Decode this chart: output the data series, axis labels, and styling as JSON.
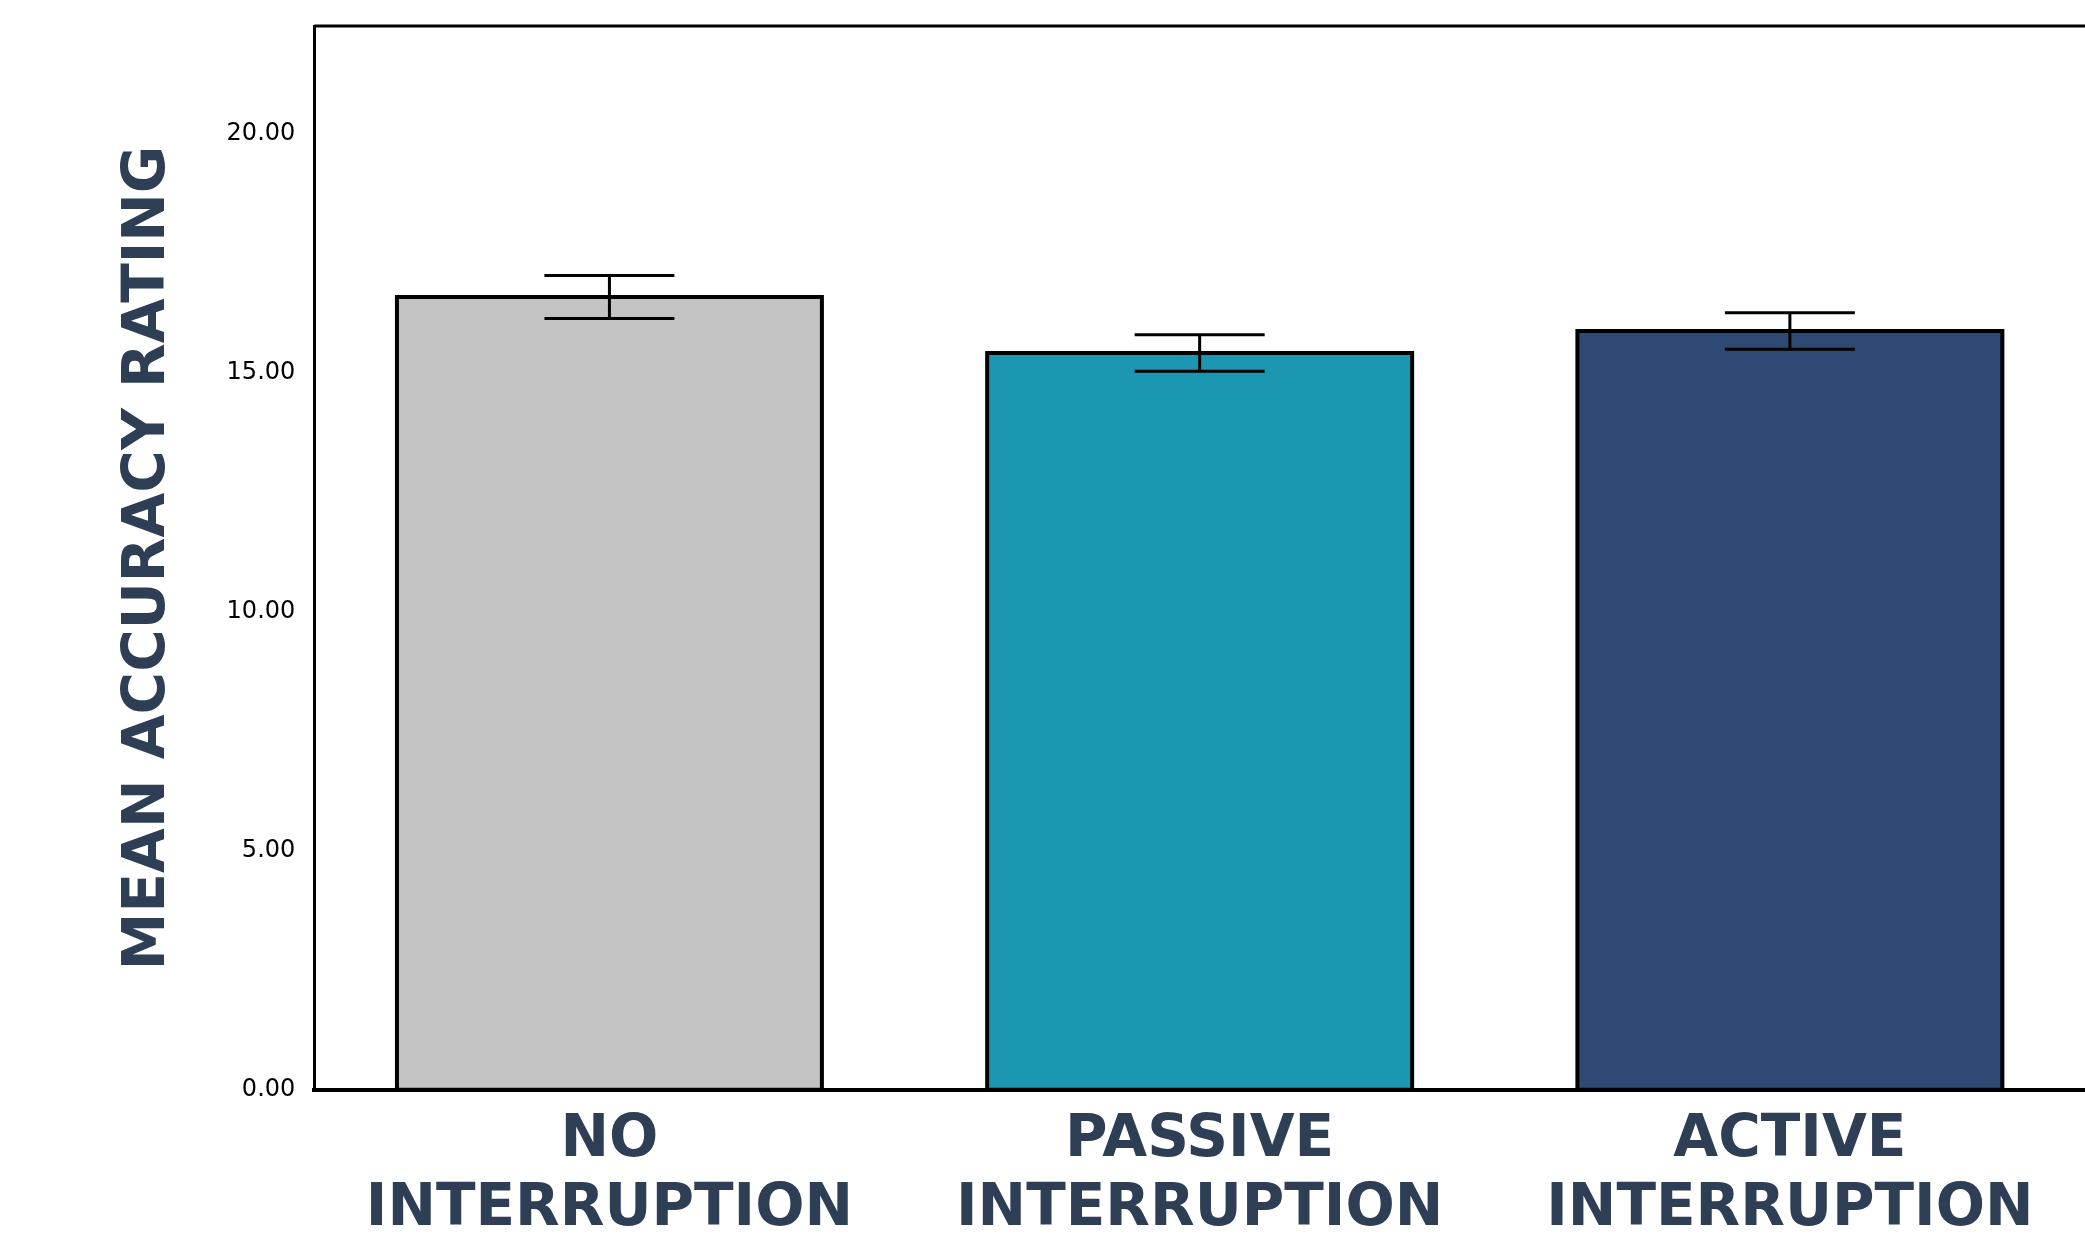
{
  "chart_data": {
    "type": "bar",
    "ylabel": "MEAN ACCURACY RATING",
    "categories": [
      "NO INTERRUPTION",
      "PASSIVE INTERRUPTION",
      "ACTIVE INTERRUPTION"
    ],
    "values": [
      16.58,
      15.41,
      15.87
    ],
    "errors": [
      0.45,
      0.38,
      0.38
    ],
    "colors": [
      "#c3c3c3",
      "#1c97b1",
      "#2e4a74"
    ],
    "ylim": [
      0,
      22.25
    ],
    "yticks": [
      {
        "value": 0,
        "label": "0.00"
      },
      {
        "value": 5,
        "label": "5.00"
      },
      {
        "value": 10,
        "label": "10.00"
      },
      {
        "value": 15,
        "label": "15.00"
      },
      {
        "value": 20,
        "label": "20.00"
      }
    ],
    "grid": false,
    "legend": false
  }
}
